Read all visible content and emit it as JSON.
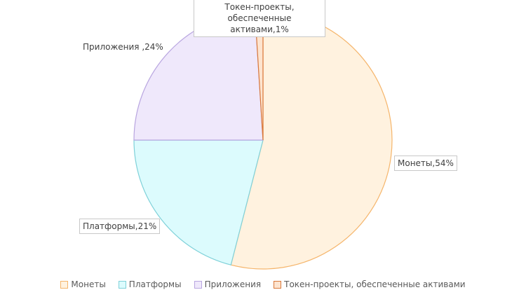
{
  "chart_data": {
    "type": "pie",
    "categories": [
      "Монеты",
      "Платформы",
      "Приложения",
      "Токен-проекты, обеспеченные активами"
    ],
    "values": [
      54,
      21,
      24,
      1
    ],
    "value_labels": [
      "Монеты,54%",
      "Платформы,21%",
      "Приложения ,24%",
      "Токен-проекты, обеспеченные активами,1%"
    ],
    "colors": [
      "#f5b56b",
      "#7fd1d9",
      "#b9a6e0",
      "#d9783a"
    ],
    "fills": [
      "#fff2df",
      "#dcfbfd",
      "#efe8fb",
      "#fde4cf"
    ],
    "legend": "bottom"
  }
}
